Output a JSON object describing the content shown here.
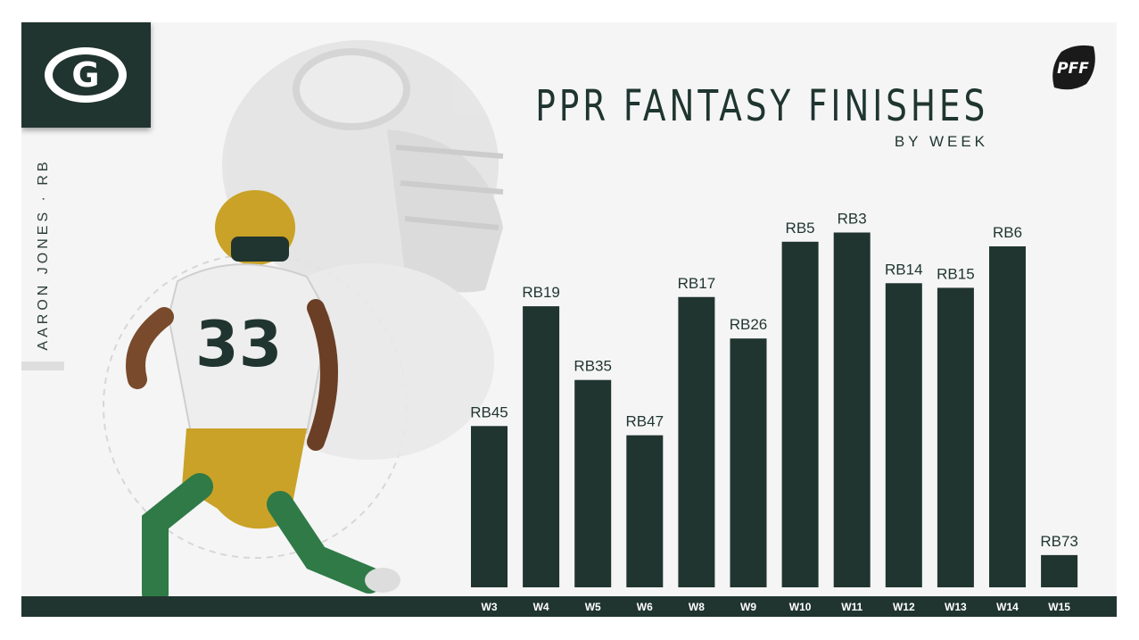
{
  "player": {
    "name_vertical": "AARON JONES · RB"
  },
  "team_logo": {
    "letter": "G",
    "icon": "packers-g-logo-icon"
  },
  "brand": {
    "logo_text": "PFF",
    "icon": "pff-football-logo-icon"
  },
  "colors": {
    "primary": "#213530",
    "background": "#f5f5f5",
    "gold": "#c9a227"
  },
  "chart_data": {
    "type": "bar",
    "title": "PPR FANTASY FINISHES",
    "subtitle": "BY WEEK",
    "xlabel": "",
    "ylabel": "",
    "y_axis": "inverted positional rank (RB1 = tallest)",
    "ylim": [
      80,
      0
    ],
    "grid": false,
    "categories": [
      "W3",
      "W4",
      "W5",
      "W6",
      "W8",
      "W9",
      "W10",
      "W11",
      "W12",
      "W13",
      "W14",
      "W15"
    ],
    "values": [
      45,
      19,
      35,
      47,
      17,
      26,
      5,
      3,
      14,
      15,
      6,
      73
    ],
    "data_labels": [
      "RB45",
      "RB19",
      "RB35",
      "RB47",
      "RB17",
      "RB26",
      "RB5",
      "RB3",
      "RB14",
      "RB15",
      "RB6",
      "RB73"
    ]
  }
}
